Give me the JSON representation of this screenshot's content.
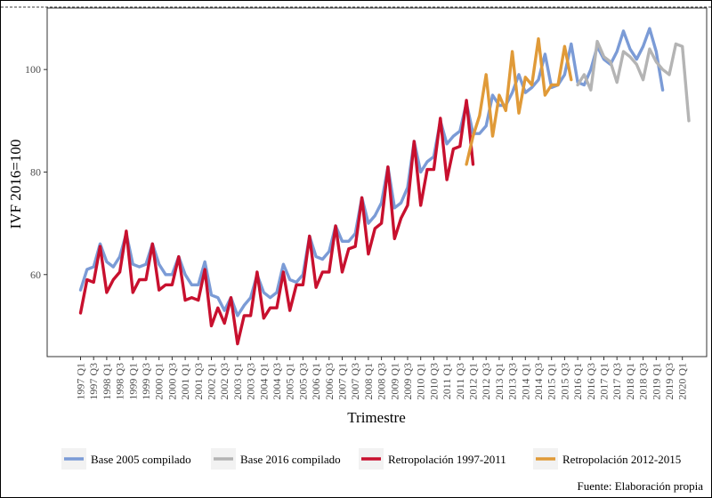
{
  "chart_data": {
    "type": "line",
    "xlabel": "Trimestre",
    "ylabel": "IVF 2016=100",
    "ylim": [
      44,
      112
    ],
    "yticks": [
      60,
      80,
      100
    ],
    "caption": "Fuente: Elaboración propia",
    "legend_position": "bottom",
    "grid": false,
    "x_tick_labels": [
      "1997 Q1",
      "1997 Q3",
      "1998 Q1",
      "1998 Q3",
      "1999 Q1",
      "1999 Q3",
      "2000 Q1",
      "2000 Q3",
      "2001 Q1",
      "2001 Q3",
      "2002 Q1",
      "2002 Q3",
      "2003 Q1",
      "2003 Q3",
      "2004 Q1",
      "2004 Q3",
      "2005 Q1",
      "2005 Q3",
      "2006 Q1",
      "2006 Q3",
      "2007 Q1",
      "2007 Q3",
      "2008 Q1",
      "2008 Q3",
      "2009 Q1",
      "2009 Q3",
      "2010 Q1",
      "2010 Q3",
      "2011 Q1",
      "2011 Q3",
      "2012 Q1",
      "2012 Q3",
      "2013 Q1",
      "2013 Q3",
      "2014 Q1",
      "2014 Q3",
      "2015 Q1",
      "2015 Q3",
      "2016 Q1",
      "2016 Q3",
      "2017 Q1",
      "2017 Q3",
      "2018 Q1",
      "2018 Q3",
      "2019 Q1",
      "2019 Q3",
      "2020 Q1"
    ],
    "series": [
      {
        "name": "Base 2005 compilado",
        "color": "#7b9bd6",
        "start": "1997 Q1",
        "values": [
          57,
          61,
          61.5,
          66,
          62.5,
          61.5,
          63.5,
          68,
          62,
          61.5,
          62,
          66,
          62,
          60,
          60,
          63.5,
          60,
          58,
          58,
          62.5,
          56,
          55.5,
          53,
          55.5,
          52,
          54,
          55.5,
          60,
          56.5,
          55.5,
          56.5,
          62,
          59,
          58.5,
          60,
          67.5,
          63.5,
          63,
          64.5,
          69.5,
          66.5,
          66.5,
          68,
          75,
          70,
          71.5,
          74,
          81,
          73,
          74,
          77,
          86,
          80,
          82,
          83,
          90,
          85.5,
          87,
          88,
          93.5,
          87.5,
          87.5,
          89,
          95,
          93,
          93,
          95.5,
          99,
          95.5,
          96.5,
          98,
          103,
          96.5,
          97,
          99,
          105,
          97.5,
          97,
          100,
          104.5,
          102,
          101,
          103.5,
          107.5,
          104,
          102,
          104.5,
          108,
          103.5,
          96
        ]
      },
      {
        "name": "Base 2016 compilado",
        "color": "#b4b4b4",
        "start": "2016 Q1",
        "values": [
          97,
          99,
          96,
          105.5,
          102.5,
          101.5,
          97.5,
          103.5,
          102.5,
          101,
          98,
          104,
          101.5,
          100,
          99,
          105,
          104.5,
          90
        ]
      },
      {
        "name": "Retropolación 1997-2011",
        "color": "#c8102e",
        "start": "1997 Q1",
        "values": [
          52.5,
          59,
          58.5,
          65.5,
          56.5,
          59,
          60.5,
          68.5,
          56.5,
          59,
          59,
          66,
          57,
          58,
          58,
          63.5,
          55,
          55.5,
          55,
          61,
          50,
          53.5,
          50.5,
          55.5,
          46.5,
          52,
          52,
          60.5,
          51.5,
          53.5,
          53.5,
          60.5,
          53,
          58,
          58,
          67.5,
          57.5,
          60.5,
          60.5,
          69.5,
          60.5,
          65,
          65.5,
          75,
          64,
          69,
          70,
          81,
          67,
          71,
          73.5,
          86,
          73.5,
          80.5,
          80.5,
          90.5,
          78.5,
          84.5,
          85,
          94,
          81.5
        ]
      },
      {
        "name": "Retropolación 2012-2015",
        "color": "#e09a38",
        "start": "2011 Q4",
        "values": [
          81.5,
          87,
          91,
          99,
          87,
          95,
          92,
          103.5,
          91.5,
          98.5,
          97,
          106,
          95,
          97,
          97,
          104.5,
          98
        ]
      }
    ]
  }
}
